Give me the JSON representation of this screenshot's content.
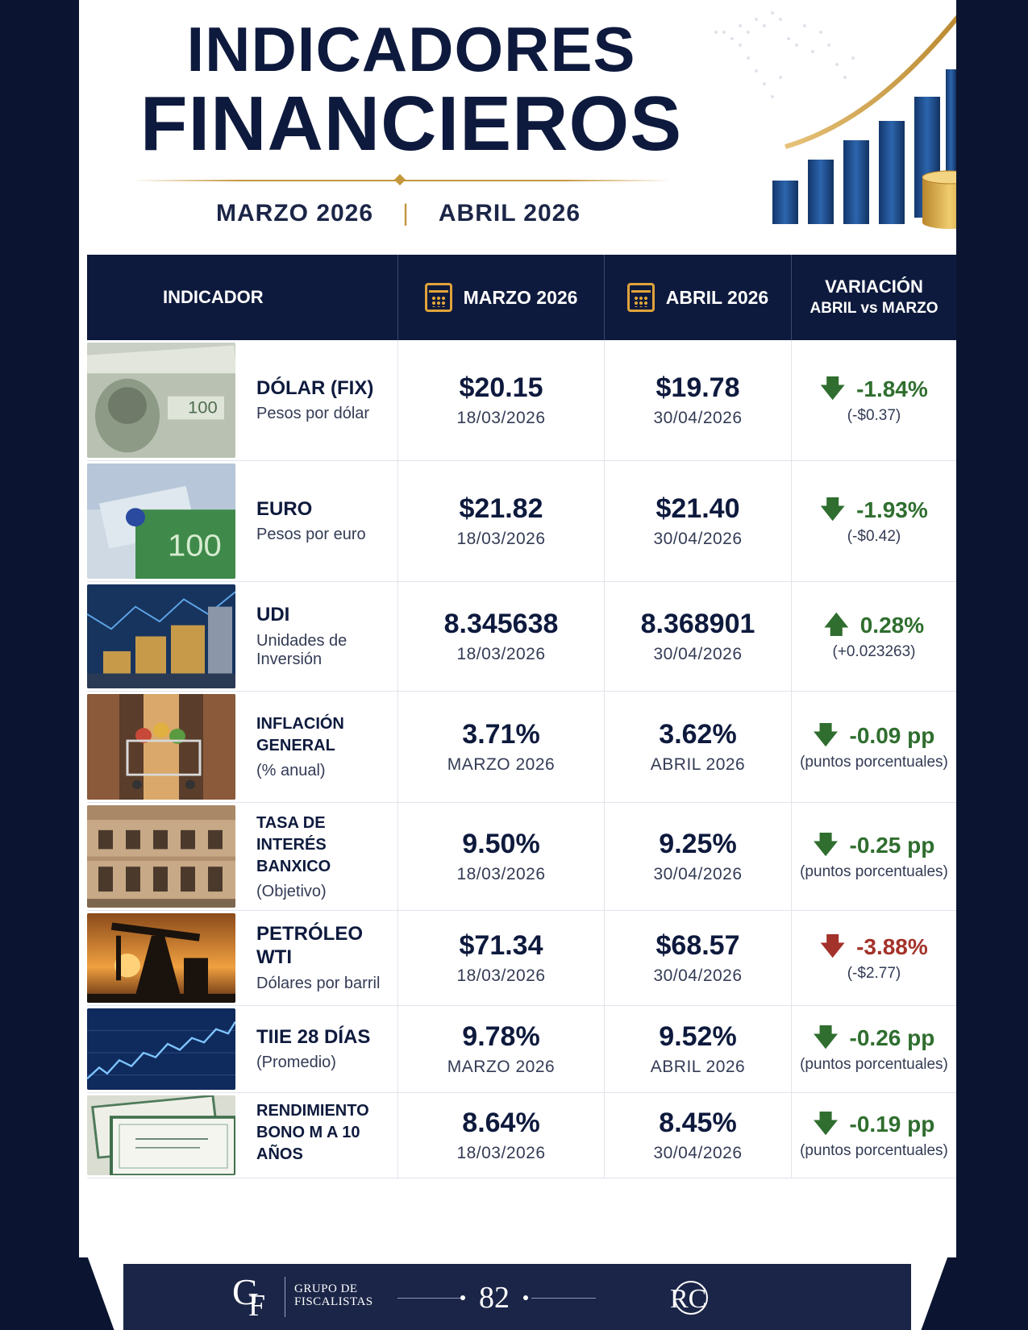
{
  "header": {
    "title_line1": "INDICADORES",
    "title_line2": "FINANCIEROS",
    "period_1": "MARZO 2026",
    "period_2": "ABRIL 2026",
    "separator": "|"
  },
  "table": {
    "headers": {
      "indicator": "INDICADOR",
      "march": "MARZO 2026",
      "april": "ABRIL 2026",
      "variation_title": "VARIACIÓN",
      "variation_sub": "ABRIL vs MARZO"
    },
    "rows": [
      {
        "name": "DÓLAR (FIX)",
        "desc": "Pesos por dólar",
        "photo": "dollar-bills",
        "march_value": "$20.15",
        "march_date": "18/03/2026",
        "april_value": "$19.78",
        "april_date": "30/04/2026",
        "direction": "down",
        "var_main": "-1.84%",
        "var_detail": "(-$0.37)"
      },
      {
        "name": "EURO",
        "desc": "Pesos por euro",
        "photo": "euro-bills",
        "march_value": "$21.82",
        "march_date": "18/03/2026",
        "april_value": "$21.40",
        "april_date": "30/04/2026",
        "direction": "down",
        "var_main": "-1.93%",
        "var_detail": "(-$0.42)"
      },
      {
        "name": "UDI",
        "desc": "Unidades de Inversión",
        "photo": "coin-stacks",
        "march_value": "8.345638",
        "march_date": "18/03/2026",
        "april_value": "8.368901",
        "april_date": "30/04/2026",
        "direction": "up",
        "var_main": "0.28%",
        "var_detail": "(+0.023263)"
      },
      {
        "name": "INFLACIÓN GENERAL",
        "desc": "(% anual)",
        "photo": "shopping-cart",
        "march_value": "3.71%",
        "march_date": "MARZO 2026",
        "april_value": "3.62%",
        "april_date": "ABRIL 2026",
        "direction": "down",
        "var_main": "-0.09 pp",
        "var_detail": "(puntos porcentuales)"
      },
      {
        "name": "TASA DE INTERÉS BANXICO",
        "desc": "(Objetivo)",
        "photo": "bank-building",
        "march_value": "9.50%",
        "march_date": "18/03/2026",
        "april_value": "9.25%",
        "april_date": "30/04/2026",
        "direction": "down",
        "var_main": "-0.25 pp",
        "var_detail": "(puntos porcentuales)"
      },
      {
        "name": "PETRÓLEO WTI",
        "desc": "Dólares por barril",
        "photo": "oil-pump",
        "march_value": "$71.34",
        "march_date": "18/03/2026",
        "april_value": "$68.57",
        "april_date": "30/04/2026",
        "direction": "down-red",
        "var_main": "-3.88%",
        "var_detail": "(-$2.77)"
      },
      {
        "name": "TIIE 28 DÍAS",
        "desc": "(Promedio)",
        "photo": "stock-chart",
        "march_value": "9.78%",
        "march_date": "MARZO 2026",
        "april_value": "9.52%",
        "april_date": "ABRIL 2026",
        "direction": "down",
        "var_main": "-0.26 pp",
        "var_detail": "(puntos porcentuales)"
      },
      {
        "name": "RENDIMIENTO BONO M A 10 AÑOS",
        "desc": "",
        "photo": "bond-certificates",
        "march_value": "8.64%",
        "march_date": "18/03/2026",
        "april_value": "8.45%",
        "april_date": "30/04/2026",
        "direction": "down",
        "var_main": "-0.19 pp",
        "var_detail": "(puntos porcentuales)"
      }
    ]
  },
  "footer": {
    "logo_letters_g": "G",
    "logo_letters_f": "F",
    "org_line1": "GRUPO DE",
    "org_line2": "FISCALISTAS",
    "page_number": "82",
    "right_logo": "RC"
  },
  "colors": {
    "navy": "#0e1a3d",
    "gold": "#c4973c",
    "green": "#2f6e2f",
    "red": "#a3322a",
    "bar_blue": "#1f4f8f"
  }
}
